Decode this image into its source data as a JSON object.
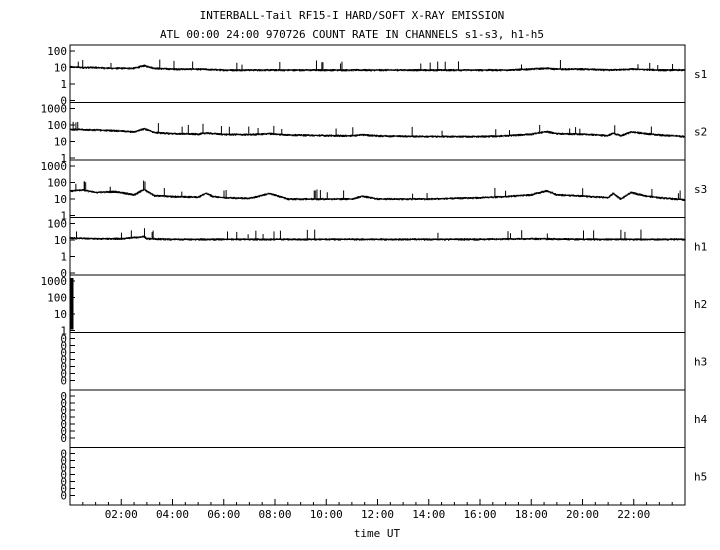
{
  "title": "INTERBALL-Tail RF15-I HARD/SOFT X-RAY EMISSION",
  "subtitle": "ATL 00:00 24:00 970726  COUNT RATE IN CHANNELS s1-s3, h1-h5",
  "colors": {
    "trace": "#000000",
    "frame": "#000000",
    "background": "#ffffff"
  },
  "chart_data": {
    "type": "line",
    "title": "INTERBALL-Tail RF15-I HARD/SOFT X-RAY EMISSION",
    "subtitle": "ATL 00:00 24:00 970726  COUNT RATE IN CHANNELS s1-s3, h1-h5",
    "xlabel": "time UT",
    "x_unit": "hours UT",
    "xlim": [
      0,
      24
    ],
    "x_ticks": [
      "02:00",
      "04:00",
      "06:00",
      "08:00",
      "10:00",
      "12:00",
      "14:00",
      "16:00",
      "18:00",
      "20:00",
      "22:00"
    ],
    "x_tick_hours": [
      2,
      4,
      6,
      8,
      10,
      12,
      14,
      16,
      18,
      20,
      22
    ],
    "y_scale": "log",
    "grid": false,
    "panels": [
      {
        "name": "s1",
        "y_ticks": [
          "100",
          "10",
          "1",
          "0"
        ],
        "y_tick_values": [
          100,
          10,
          1,
          0
        ],
        "series": {
          "x": [
            0,
            0.5,
            1,
            1.5,
            2,
            2.5,
            2.9,
            3.3,
            4,
            5,
            6,
            7,
            8,
            9,
            10,
            11,
            12,
            13,
            14,
            15,
            16,
            17,
            18,
            18.6,
            19,
            20,
            21,
            22,
            23,
            24
          ],
          "y": [
            11,
            10,
            10,
            9,
            9,
            9,
            13,
            9,
            8,
            8,
            7,
            7,
            7,
            7,
            7,
            7,
            7,
            7,
            7,
            7,
            7,
            7,
            8,
            9,
            8,
            8,
            7,
            8,
            7,
            7
          ]
        }
      },
      {
        "name": "s2",
        "y_ticks": [
          "1000",
          "100",
          "10",
          "1",
          "0"
        ],
        "y_tick_values": [
          1000,
          100,
          10,
          1,
          0
        ],
        "series": {
          "x": [
            0,
            1,
            1.8,
            2.5,
            2.9,
            3.3,
            4,
            5,
            5.3,
            5.6,
            6,
            7,
            7.8,
            8.5,
            10,
            11,
            11.4,
            12,
            14,
            16,
            17,
            18,
            18.6,
            19,
            20,
            21,
            21.2,
            21.5,
            21.9,
            22.5,
            23,
            24
          ],
          "y": [
            55,
            50,
            45,
            38,
            60,
            35,
            30,
            28,
            33,
            30,
            27,
            26,
            30,
            25,
            23,
            22,
            26,
            22,
            20,
            20,
            22,
            28,
            40,
            30,
            28,
            23,
            32,
            22,
            38,
            30,
            25,
            20
          ]
        }
      },
      {
        "name": "s3",
        "y_ticks": [
          "1000",
          "100",
          "10",
          "1",
          "0"
        ],
        "y_tick_values": [
          1000,
          100,
          10,
          1,
          0
        ],
        "series": {
          "x": [
            0,
            0.5,
            1,
            1.8,
            2.5,
            2.9,
            3.3,
            4,
            5,
            5.3,
            5.6,
            6,
            7,
            7.8,
            8.5,
            10,
            11,
            11.4,
            12,
            14,
            16,
            17,
            18,
            18.6,
            19,
            20,
            21,
            21.2,
            21.5,
            21.9,
            22.5,
            23,
            24
          ],
          "y": [
            30,
            35,
            25,
            28,
            18,
            38,
            16,
            14,
            13,
            22,
            14,
            12,
            11,
            22,
            10,
            10,
            10,
            15,
            10,
            10,
            12,
            14,
            18,
            32,
            18,
            15,
            12,
            22,
            10,
            25,
            15,
            12,
            9
          ]
        }
      },
      {
        "name": "h1",
        "y_ticks": [
          "100",
          "10",
          "1",
          "0"
        ],
        "y_tick_values": [
          100,
          10,
          1,
          0
        ],
        "series": {
          "x": [
            0,
            1,
            2,
            2.9,
            3,
            4,
            6,
            8,
            10,
            12,
            14,
            16,
            18,
            20,
            22,
            24
          ],
          "y": [
            13,
            12,
            12,
            16,
            12,
            11,
            11,
            11,
            11,
            11,
            11,
            11,
            12,
            11,
            11,
            11
          ]
        }
      },
      {
        "name": "h2",
        "y_ticks": [
          "1000",
          "100",
          "10",
          "1",
          "0"
        ],
        "y_tick_values": [
          1000,
          100,
          10,
          1,
          0
        ],
        "series": {
          "x": [],
          "y": []
        }
      },
      {
        "name": "h3",
        "y_ticks": [
          "0",
          "0",
          "0",
          "0",
          "0",
          "0",
          "0"
        ],
        "y_tick_values": [
          0,
          0,
          0,
          0,
          0,
          0,
          0
        ],
        "series": {
          "x": [],
          "y": []
        }
      },
      {
        "name": "h4",
        "y_ticks": [
          "0",
          "0",
          "0",
          "0",
          "0",
          "0",
          "0"
        ],
        "y_tick_values": [
          0,
          0,
          0,
          0,
          0,
          0,
          0
        ],
        "series": {
          "x": [],
          "y": []
        }
      },
      {
        "name": "h5",
        "y_ticks": [
          "0",
          "0",
          "0",
          "0",
          "0",
          "0",
          "0"
        ],
        "y_tick_values": [
          0,
          0,
          0,
          0,
          0,
          0,
          0
        ],
        "series": {
          "x": [],
          "y": []
        }
      }
    ]
  }
}
